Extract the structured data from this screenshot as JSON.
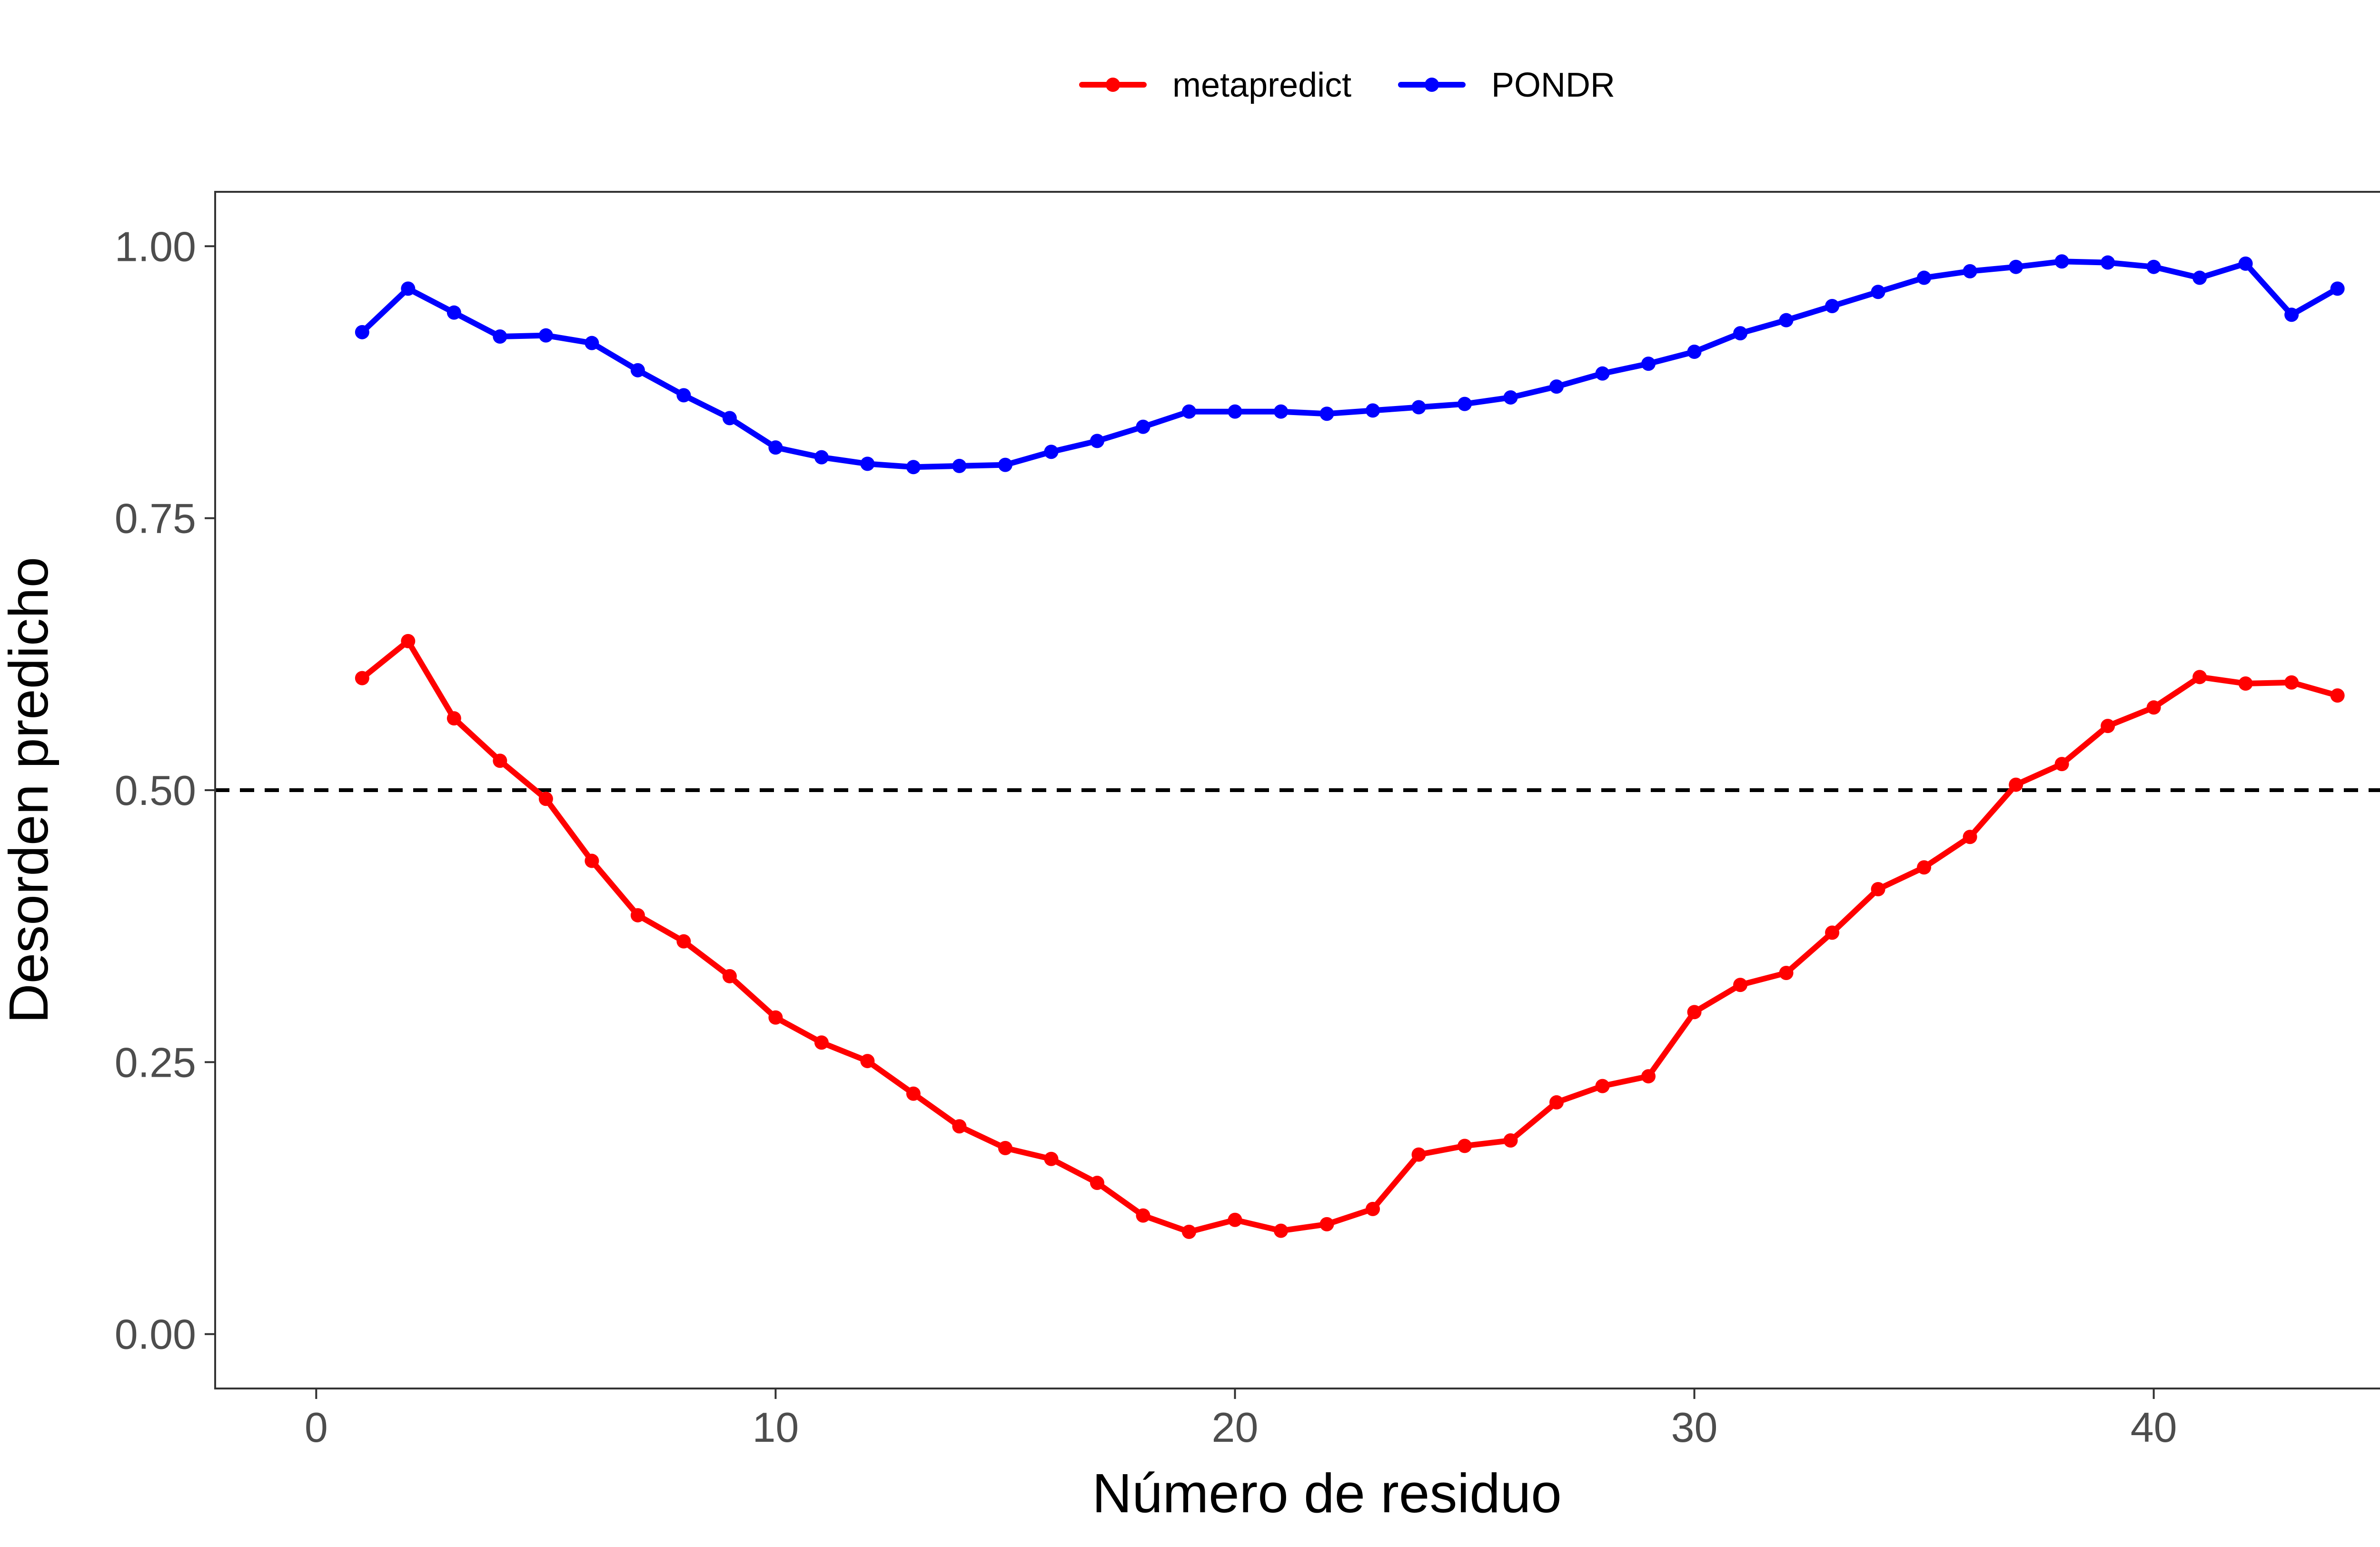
{
  "chart_data": {
    "type": "line",
    "title": "",
    "xlabel": "Número de residuo",
    "ylabel": "Desorden predicho",
    "xlim": [
      -2.2,
      46.2
    ],
    "ylim": [
      -0.05,
      1.05
    ],
    "xticks": [
      0,
      10,
      20,
      30,
      40
    ],
    "xtick_labels": [
      "0",
      "10",
      "20",
      "30",
      "40"
    ],
    "yticks": [
      0.0,
      0.25,
      0.5,
      0.75,
      1.0
    ],
    "ytick_labels": [
      "0.00",
      "0.25",
      "0.50",
      "0.75",
      "1.00"
    ],
    "grid": false,
    "legend_position": "top",
    "reference_line": {
      "y": 0.5,
      "style": "dashed",
      "color": "#000000"
    },
    "x": [
      1,
      2,
      3,
      4,
      5,
      6,
      7,
      8,
      9,
      10,
      11,
      12,
      13,
      14,
      15,
      16,
      17,
      18,
      19,
      20,
      21,
      22,
      23,
      24,
      25,
      26,
      27,
      28,
      29,
      30,
      31,
      32,
      33,
      34,
      35,
      36,
      37,
      38,
      39,
      40,
      41,
      42,
      43,
      44
    ],
    "series": [
      {
        "name": "metapredict",
        "color": "#ff0000",
        "values": [
          0.603,
          0.637,
          0.566,
          0.527,
          0.492,
          0.435,
          0.385,
          0.361,
          0.329,
          0.291,
          0.268,
          0.251,
          0.221,
          0.191,
          0.171,
          0.161,
          0.139,
          0.109,
          0.094,
          0.105,
          0.095,
          0.101,
          0.115,
          0.165,
          0.173,
          0.178,
          0.213,
          0.228,
          0.237,
          0.296,
          0.321,
          0.332,
          0.369,
          0.409,
          0.429,
          0.457,
          0.505,
          0.524,
          0.559,
          0.576,
          0.604,
          0.598,
          0.599,
          0.587
        ]
      },
      {
        "name": "PONDR",
        "color": "#0000ff",
        "values": [
          0.921,
          0.961,
          0.939,
          0.917,
          0.918,
          0.911,
          0.886,
          0.863,
          0.842,
          0.815,
          0.806,
          0.8,
          0.797,
          0.798,
          0.799,
          0.811,
          0.821,
          0.834,
          0.848,
          0.848,
          0.848,
          0.846,
          0.849,
          0.852,
          0.855,
          0.861,
          0.871,
          0.883,
          0.892,
          0.903,
          0.92,
          0.932,
          0.945,
          0.958,
          0.971,
          0.977,
          0.981,
          0.986,
          0.985,
          0.981,
          0.971,
          0.984,
          0.937,
          0.961
        ]
      }
    ]
  }
}
